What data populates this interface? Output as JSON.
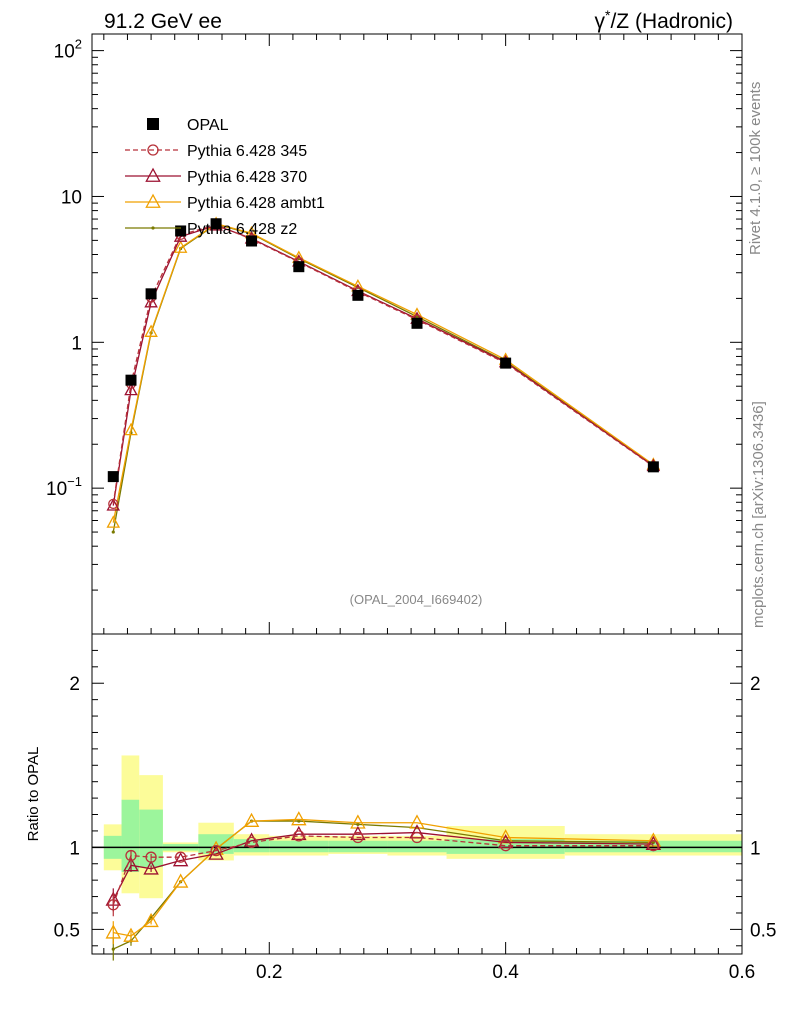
{
  "header": {
    "left_title": "91.2 GeV ee",
    "right_title_prefix": "γ",
    "right_title_sup": "*",
    "right_title_suffix": "/Z (Hadronic)"
  },
  "side_labels": {
    "rivet": "Rivet 4.1.0, ≥ 100k events",
    "mcplots": "mcplots.cern.ch [arXiv:1306.3436]"
  },
  "analysis_id": "(OPAL_2004_I669402)",
  "colors": {
    "opal": "#000000",
    "p345": "#b7323a",
    "p370": "#9c1030",
    "ambt1": "#f0a000",
    "z2": "#7a7a00",
    "band_inner": "#9cf59c",
    "band_outer": "#fcfc99"
  },
  "chart_data": {
    "type": "line",
    "main": {
      "yscale": "log",
      "ylim": [
        0.01,
        130
      ],
      "ytick_labels": [
        {
          "value": 0.1,
          "base": "10",
          "exp": "−1"
        },
        {
          "value": 1,
          "base": "1",
          "exp": ""
        },
        {
          "value": 10,
          "base": "10",
          "exp": ""
        },
        {
          "value": 100,
          "base": "10",
          "exp": "2"
        }
      ]
    },
    "ratio": {
      "ylabel": "Ratio to OPAL",
      "ylim": [
        0.35,
        2.3
      ],
      "ytick_labels": [
        {
          "value": 0.5,
          "label": "0.5"
        },
        {
          "value": 1,
          "label": "1"
        },
        {
          "value": 2,
          "label": "2"
        }
      ]
    },
    "xlim": [
      0.05,
      0.6
    ],
    "xtick_labels": [
      {
        "value": 0.2,
        "label": "0.2"
      },
      {
        "value": 0.4,
        "label": "0.4"
      },
      {
        "value": 0.6,
        "label": "0.6"
      }
    ],
    "bins": [
      {
        "x": 0.068,
        "lo": 0.06,
        "hi": 0.075,
        "inner": [
          0.93,
          1.07
        ],
        "outer": [
          0.86,
          1.14
        ]
      },
      {
        "x": 0.083,
        "lo": 0.075,
        "hi": 0.09,
        "inner": [
          0.85,
          1.29
        ],
        "outer": [
          0.72,
          1.56
        ]
      },
      {
        "x": 0.1,
        "lo": 0.09,
        "hi": 0.11,
        "inner": [
          0.88,
          1.23
        ],
        "outer": [
          0.69,
          1.44
        ]
      },
      {
        "x": 0.125,
        "lo": 0.11,
        "hi": 0.14,
        "inner": [
          0.98,
          1.02
        ],
        "outer": [
          0.97,
          1.03
        ]
      },
      {
        "x": 0.155,
        "lo": 0.14,
        "hi": 0.17,
        "inner": [
          0.96,
          1.08
        ],
        "outer": [
          0.92,
          1.15
        ]
      },
      {
        "x": 0.185,
        "lo": 0.17,
        "hi": 0.2,
        "inner": [
          0.97,
          1.05
        ],
        "outer": [
          0.95,
          1.08
        ]
      },
      {
        "x": 0.225,
        "lo": 0.2,
        "hi": 0.25,
        "inner": [
          0.97,
          1.04
        ],
        "outer": [
          0.95,
          1.07
        ]
      },
      {
        "x": 0.275,
        "lo": 0.25,
        "hi": 0.3,
        "inner": [
          0.97,
          1.04
        ],
        "outer": [
          0.96,
          1.07
        ]
      },
      {
        "x": 0.325,
        "lo": 0.3,
        "hi": 0.35,
        "inner": [
          0.97,
          1.04
        ],
        "outer": [
          0.95,
          1.07
        ]
      },
      {
        "x": 0.4,
        "lo": 0.35,
        "hi": 0.45,
        "inner": [
          0.96,
          1.05
        ],
        "outer": [
          0.93,
          1.13
        ]
      },
      {
        "x": 0.525,
        "lo": 0.45,
        "hi": 0.6,
        "inner": [
          0.97,
          1.04
        ],
        "outer": [
          0.95,
          1.08
        ]
      }
    ],
    "series": [
      {
        "name": "OPAL",
        "kind": "data",
        "values": [
          0.12,
          0.55,
          2.15,
          5.8,
          6.5,
          4.95,
          3.3,
          2.1,
          1.35,
          0.72,
          0.14
        ]
      },
      {
        "name": "Pythia 6.428 345",
        "kind": "mc",
        "marker": "circle",
        "dashed": true,
        "values": [
          0.078,
          0.52,
          2.03,
          5.45,
          6.4,
          5.1,
          3.55,
          2.22,
          1.43,
          0.72,
          0.141
        ],
        "ratio": [
          0.65,
          0.95,
          0.94,
          0.94,
          0.98,
          1.03,
          1.07,
          1.06,
          1.06,
          1.01,
          1.01
        ],
        "ratio_err": [
          0.07,
          0.03,
          0.02,
          0.01,
          0.01,
          0.01,
          0.01,
          0.01,
          0.01,
          0.01,
          0.01
        ]
      },
      {
        "name": "Pythia 6.428 370",
        "kind": "mc",
        "marker": "triangle",
        "dashed": false,
        "values": [
          0.076,
          0.47,
          1.88,
          5.3,
          6.33,
          5.15,
          3.58,
          2.25,
          1.45,
          0.73,
          0.142
        ],
        "ratio": [
          0.68,
          0.89,
          0.87,
          0.92,
          0.96,
          1.04,
          1.08,
          1.08,
          1.09,
          1.03,
          1.02
        ],
        "ratio_err": [
          0.07,
          0.04,
          0.02,
          0.01,
          0.01,
          0.01,
          0.01,
          0.01,
          0.01,
          0.01,
          0.01
        ]
      },
      {
        "name": "Pythia 6.428 ambt1",
        "kind": "mc",
        "marker": "triangle",
        "dashed": false,
        "values": [
          0.058,
          0.25,
          1.18,
          4.45,
          6.5,
          5.6,
          3.8,
          2.42,
          1.55,
          0.76,
          0.145
        ],
        "ratio": [
          0.48,
          0.46,
          0.55,
          0.79,
          0.99,
          1.16,
          1.17,
          1.15,
          1.15,
          1.06,
          1.04
        ],
        "ratio_err": [
          0.07,
          0.03,
          0.02,
          0.01,
          0.01,
          0.01,
          0.01,
          0.01,
          0.01,
          0.01,
          0.01
        ]
      },
      {
        "name": "Pythia 6.428 z2",
        "kind": "mc",
        "marker": "dot",
        "dashed": false,
        "values": [
          0.05,
          0.24,
          1.16,
          4.4,
          6.45,
          5.55,
          3.75,
          2.38,
          1.5,
          0.74,
          0.143
        ],
        "ratio": [
          0.38,
          0.43,
          0.57,
          0.79,
          0.99,
          1.16,
          1.16,
          1.14,
          1.12,
          1.04,
          1.03
        ],
        "ratio_err": [
          0.07,
          0.03,
          0.02,
          0.01,
          0.01,
          0.01,
          0.01,
          0.01,
          0.01,
          0.01,
          0.01
        ]
      }
    ]
  }
}
